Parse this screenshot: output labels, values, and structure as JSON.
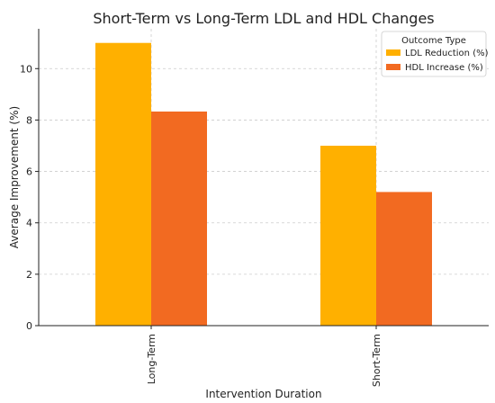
{
  "chart_data": {
    "type": "bar",
    "title": "Short-Term vs Long-Term LDL and HDL Changes",
    "xlabel": "Intervention Duration",
    "ylabel": "Average Improvement (%)",
    "categories": [
      "Long-Term",
      "Short-Term"
    ],
    "series": [
      {
        "name": "LDL Reduction (%)",
        "values": [
          11.0,
          7.0
        ],
        "color": "#FFB000"
      },
      {
        "name": "HDL Increase (%)",
        "values": [
          8.33,
          5.2
        ],
        "color": "#F26A21"
      }
    ],
    "ylim": [
      0,
      11.55
    ],
    "yticks": [
      "0",
      "2",
      "4",
      "6",
      "8",
      "10"
    ],
    "grid": true,
    "legend": {
      "title": "Outcome Type",
      "placement": "top-right"
    }
  }
}
